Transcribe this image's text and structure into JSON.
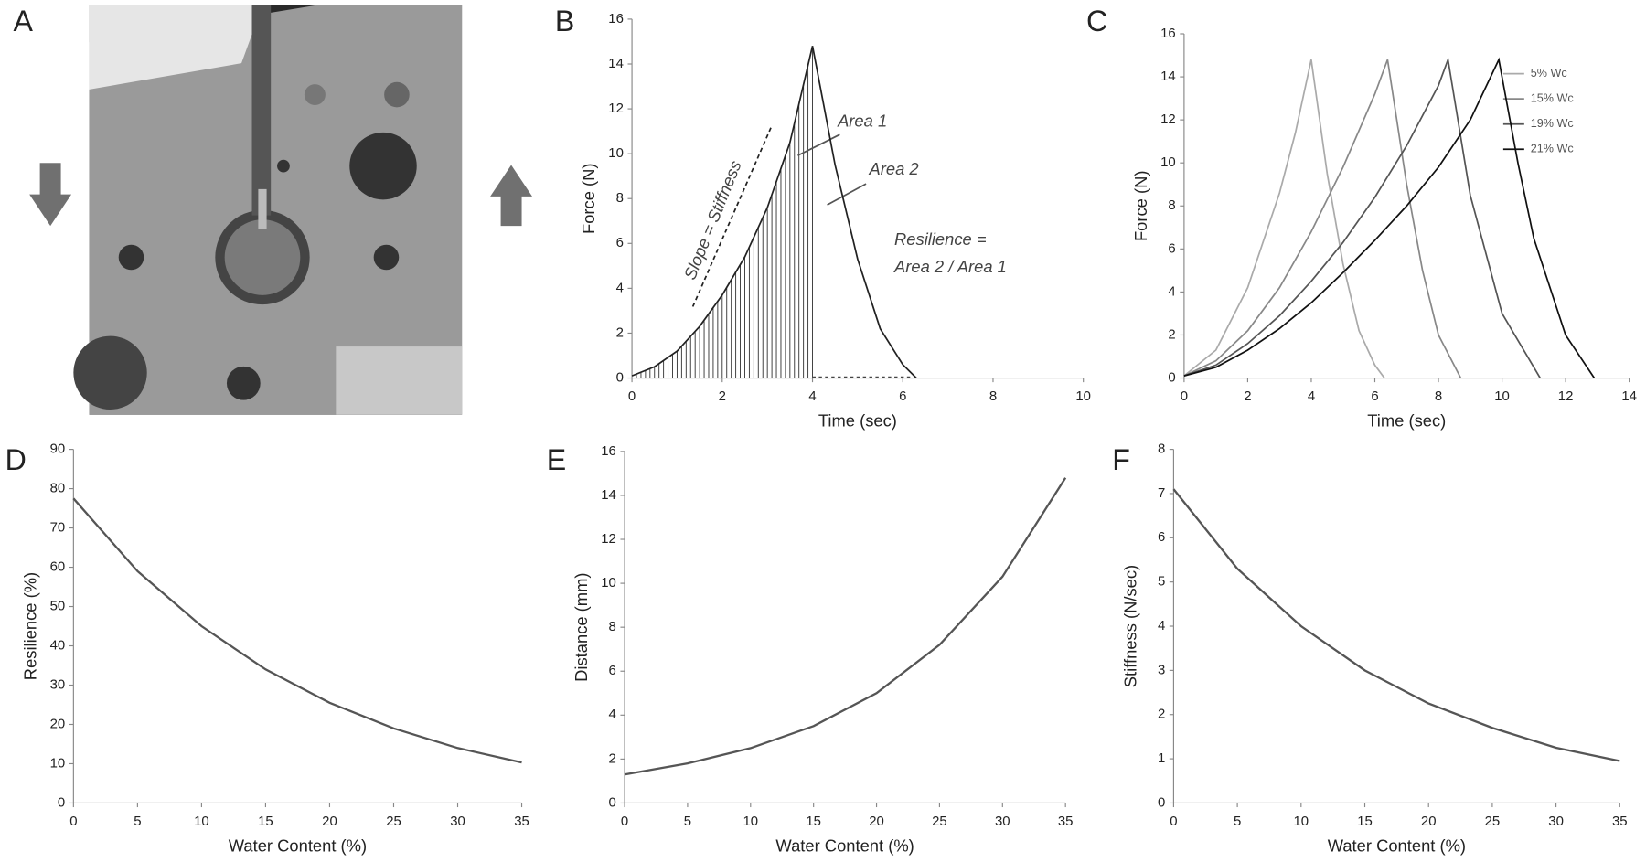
{
  "chart_data": [
    {
      "type": "image",
      "label": "A"
    },
    {
      "type": "line",
      "label": "B",
      "xlabel": "Time (sec)",
      "ylabel": "Force (N)",
      "x": [
        0,
        0.5,
        1,
        1.5,
        2,
        2.5,
        3,
        3.5,
        4,
        4.5,
        5,
        5.5,
        6,
        6.3
      ],
      "values": [
        0.1,
        0.5,
        1.2,
        2.3,
        3.7,
        5.4,
        7.6,
        10.5,
        14.8,
        9.5,
        5.3,
        2.2,
        0.6,
        0
      ],
      "color": "#222222",
      "xlim": [
        0,
        10
      ],
      "xticks": [
        0,
        2,
        4,
        6,
        8,
        10
      ],
      "ylim": [
        0,
        16
      ],
      "yticks": [
        0,
        2,
        4,
        6,
        8,
        10,
        12,
        14,
        16
      ],
      "annotations": [
        "Slope = Stiffness",
        "Area 1",
        "Area 2",
        "Resilience =",
        "Area 2 / Area 1"
      ]
    },
    {
      "type": "multiline",
      "label": "C",
      "xlabel": "Time (sec)",
      "ylabel": "Force (N)",
      "legend": "upper right",
      "series": [
        {
          "name": "5% Wc",
          "color": "#aaaaaa",
          "x": [
            0,
            1,
            2,
            3,
            3.5,
            4,
            4.5,
            5,
            5.5,
            6,
            6.3
          ],
          "values": [
            0.1,
            1.3,
            4.2,
            8.6,
            11.4,
            14.8,
            9.5,
            5.3,
            2.2,
            0.6,
            0
          ]
        },
        {
          "name": "15% Wc",
          "color": "#888888",
          "x": [
            0,
            1,
            2,
            3,
            4,
            5,
            6,
            6.4,
            7,
            7.5,
            8,
            8.7
          ],
          "values": [
            0.1,
            0.8,
            2.2,
            4.2,
            6.8,
            9.8,
            13.2,
            14.8,
            9,
            5,
            2,
            0
          ]
        },
        {
          "name": "19% Wc",
          "color": "#555555",
          "x": [
            0,
            1,
            2,
            3,
            4,
            5,
            6,
            7,
            8,
            8.3,
            9,
            10,
            11.2
          ],
          "values": [
            0.1,
            0.6,
            1.6,
            2.9,
            4.5,
            6.3,
            8.4,
            10.8,
            13.6,
            14.8,
            8.5,
            3,
            0
          ]
        },
        {
          "name": "21% Wc",
          "color": "#111111",
          "x": [
            0,
            1,
            2,
            3,
            4,
            5,
            6,
            7,
            8,
            9,
            9.9,
            10.5,
            11,
            12,
            12.9
          ],
          "values": [
            0.1,
            0.5,
            1.3,
            2.3,
            3.5,
            4.9,
            6.4,
            8,
            9.8,
            12,
            14.8,
            10,
            6.5,
            2,
            0
          ]
        }
      ],
      "xlim": [
        0,
        14
      ],
      "xticks": [
        0,
        2,
        4,
        6,
        8,
        10,
        12,
        14
      ],
      "ylim": [
        0,
        16
      ],
      "yticks": [
        0,
        2,
        4,
        6,
        8,
        10,
        12,
        14,
        16
      ]
    },
    {
      "type": "line",
      "label": "D",
      "xlabel": "Water Content (%)",
      "ylabel": "Resilience (%)",
      "x": [
        0,
        5,
        10,
        15,
        20,
        25,
        30,
        35
      ],
      "values": [
        77.5,
        59,
        45,
        34,
        25.5,
        19,
        14,
        10.3
      ],
      "color": "#555555",
      "xlim": [
        0,
        35
      ],
      "xticks": [
        0,
        5,
        10,
        15,
        20,
        25,
        30,
        35
      ],
      "ylim": [
        0,
        90
      ],
      "yticks": [
        0,
        10,
        20,
        30,
        40,
        50,
        60,
        70,
        80,
        90
      ]
    },
    {
      "type": "line",
      "label": "E",
      "xlabel": "Water Content (%)",
      "ylabel": "Distance (mm)",
      "x": [
        0,
        5,
        10,
        15,
        20,
        25,
        30,
        35
      ],
      "values": [
        1.3,
        1.8,
        2.5,
        3.5,
        5,
        7.2,
        10.3,
        14.8
      ],
      "color": "#555555",
      "xlim": [
        0,
        35
      ],
      "xticks": [
        0,
        5,
        10,
        15,
        20,
        25,
        30,
        35
      ],
      "ylim": [
        0,
        16
      ],
      "yticks": [
        0,
        2,
        4,
        6,
        8,
        10,
        12,
        14,
        16
      ]
    },
    {
      "type": "line",
      "label": "F",
      "xlabel": "Water Content (%)",
      "ylabel": "Stiffness (N/sec)",
      "x": [
        0,
        5,
        10,
        15,
        20,
        25,
        30,
        35
      ],
      "values": [
        7.1,
        5.3,
        4.0,
        3.0,
        2.25,
        1.7,
        1.25,
        0.95
      ],
      "color": "#555555",
      "xlim": [
        0,
        35
      ],
      "xticks": [
        0,
        5,
        10,
        15,
        20,
        25,
        30,
        35
      ],
      "ylim": [
        0,
        8
      ],
      "yticks": [
        0,
        1,
        2,
        3,
        4,
        5,
        6,
        7,
        8
      ]
    }
  ]
}
